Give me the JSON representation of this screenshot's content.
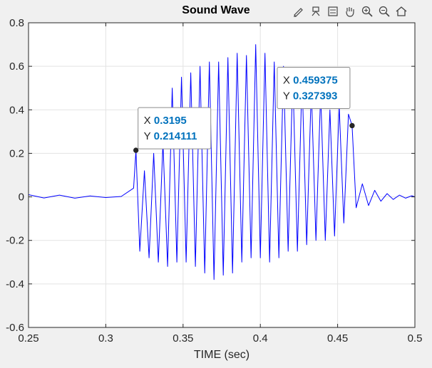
{
  "window": {
    "title": "Sound Wave"
  },
  "toolbar": {
    "items": [
      {
        "name": "edit-brush-icon"
      },
      {
        "name": "insert-data-tip-icon"
      },
      {
        "name": "insert-legend-icon"
      },
      {
        "name": "pan-hand-icon"
      },
      {
        "name": "zoom-in-icon"
      },
      {
        "name": "zoom-out-icon"
      },
      {
        "name": "home-restore-view-icon"
      }
    ]
  },
  "chart_data": {
    "type": "line",
    "title": "Sound Wave",
    "xlabel": "TIME (sec)",
    "ylabel": "",
    "xlim": [
      0.25,
      0.5
    ],
    "ylim": [
      -0.6,
      0.8
    ],
    "xticks": [
      "0.25",
      "0.3",
      "0.35",
      "0.4",
      "0.45",
      "0.5"
    ],
    "xtick_values": [
      0.25,
      0.3,
      0.35,
      0.4,
      0.45,
      0.5
    ],
    "yticks": [
      "-0.6",
      "-0.4",
      "-0.2",
      "0",
      "0.2",
      "0.4",
      "0.6",
      "0.8"
    ],
    "ytick_values": [
      -0.6,
      -0.4,
      -0.2,
      0,
      0.2,
      0.4,
      0.6,
      0.8
    ],
    "grid": true,
    "line_color": "#0000ff",
    "series": [
      {
        "x": [
          0.25,
          0.26,
          0.27,
          0.28,
          0.29,
          0.3,
          0.31,
          0.318,
          0.3195,
          0.322,
          0.325,
          0.328,
          0.331,
          0.334,
          0.337,
          0.34,
          0.343,
          0.346,
          0.349,
          0.352,
          0.355,
          0.358,
          0.361,
          0.364,
          0.367,
          0.37,
          0.373,
          0.376,
          0.379,
          0.382,
          0.385,
          0.388,
          0.391,
          0.394,
          0.397,
          0.4,
          0.403,
          0.406,
          0.409,
          0.412,
          0.415,
          0.418,
          0.421,
          0.424,
          0.427,
          0.43,
          0.433,
          0.436,
          0.439,
          0.442,
          0.445,
          0.448,
          0.451,
          0.454,
          0.457,
          0.459375,
          0.462,
          0.466,
          0.47,
          0.474,
          0.478,
          0.482,
          0.486,
          0.49,
          0.494,
          0.498,
          0.5
        ],
        "y": [
          0.01,
          -0.005,
          0.008,
          -0.006,
          0.004,
          -0.003,
          0.002,
          0.04,
          0.214111,
          -0.25,
          0.12,
          -0.28,
          0.2,
          -0.3,
          0.25,
          -0.32,
          0.5,
          -0.3,
          0.55,
          -0.3,
          0.57,
          -0.32,
          0.6,
          -0.35,
          0.62,
          -0.38,
          0.62,
          -0.36,
          0.64,
          -0.35,
          0.66,
          -0.3,
          0.65,
          -0.28,
          0.7,
          -0.28,
          0.66,
          -0.3,
          0.62,
          -0.28,
          0.6,
          -0.25,
          0.57,
          -0.25,
          0.55,
          -0.22,
          0.5,
          -0.2,
          0.48,
          -0.2,
          0.4,
          -0.18,
          0.42,
          -0.12,
          0.38,
          0.327393,
          -0.05,
          0.06,
          -0.04,
          0.03,
          -0.02,
          0.015,
          -0.012,
          0.008,
          -0.006,
          0.005,
          0.0
        ]
      }
    ],
    "datatips": [
      {
        "x_label": "X",
        "x_value": "0.3195",
        "y_label": "Y",
        "y_value": "0.214111",
        "x": 0.3195,
        "y": 0.214111
      },
      {
        "x_label": "X",
        "x_value": "0.459375",
        "y_label": "Y",
        "y_value": "0.327393",
        "x": 0.459375,
        "y": 0.327393
      }
    ]
  }
}
